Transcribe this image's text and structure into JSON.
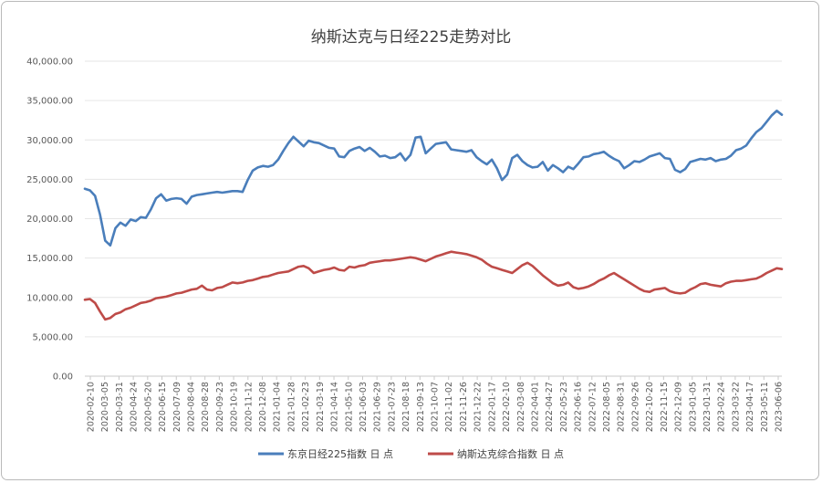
{
  "chart_data": {
    "type": "line",
    "title": "纳斯达克与日经225走势对比",
    "ylim": [
      0,
      40000
    ],
    "yticks": [
      "0.00",
      "5,000.00",
      "10,000.00",
      "15,000.00",
      "20,000.00",
      "25,000.00",
      "30,000.00",
      "35,000.00",
      "40,000.00"
    ],
    "xticks": [
      "2020-02-10",
      "2020-03-05",
      "2020-03-31",
      "2020-04-24",
      "2020-05-20",
      "2020-06-15",
      "2020-07-09",
      "2020-08-04",
      "2020-08-28",
      "2020-09-23",
      "2020-10-19",
      "2020-11-12",
      "2020-12-08",
      "2021-01-04",
      "2021-01-28",
      "2021-02-23",
      "2021-03-19",
      "2021-04-14",
      "2021-05-10",
      "2021-06-03",
      "2021-06-29",
      "2021-07-23",
      "2021-08-18",
      "2021-09-13",
      "2021-10-07",
      "2021-11-02",
      "2021-11-26",
      "2021-12-22",
      "2022-01-17",
      "2022-02-10",
      "2022-03-08",
      "2022-04-01",
      "2022-04-27",
      "2022-05-23",
      "2022-06-16",
      "2022-07-12",
      "2022-08-05",
      "2022-08-31",
      "2022-09-26",
      "2022-10-20",
      "2022-11-15",
      "2022-12-09",
      "2023-01-05",
      "2023-01-31",
      "2023-02-24",
      "2023-03-22",
      "2023-04-17",
      "2023-05-11",
      "2023-06-06"
    ],
    "legend_position": "bottom",
    "series": [
      {
        "name": "东京日经225指数 日 点",
        "color": "#4a7ebb",
        "values": [
          23800,
          23600,
          22900,
          20500,
          17200,
          16600,
          18800,
          19500,
          19100,
          19900,
          19700,
          20200,
          20100,
          21200,
          22600,
          23100,
          22300,
          22500,
          22600,
          22500,
          21900,
          22800,
          23000,
          23100,
          23200,
          23300,
          23400,
          23300,
          23400,
          23500,
          23500,
          23400,
          24900,
          26100,
          26500,
          26700,
          26600,
          26800,
          27500,
          28600,
          29600,
          30400,
          29800,
          29200,
          29900,
          29700,
          29600,
          29300,
          29000,
          28900,
          27900,
          27800,
          28600,
          28900,
          29100,
          28600,
          29000,
          28500,
          27900,
          28000,
          27700,
          27800,
          28300,
          27400,
          28100,
          30300,
          30400,
          28300,
          28900,
          29500,
          29600,
          29700,
          28800,
          28700,
          28600,
          28500,
          28700,
          27800,
          27300,
          26900,
          27500,
          26400,
          24900,
          25600,
          27700,
          28100,
          27300,
          26800,
          26500,
          26600,
          27200,
          26100,
          26800,
          26400,
          25900,
          26600,
          26300,
          27000,
          27800,
          27900,
          28200,
          28300,
          28500,
          28000,
          27600,
          27300,
          26400,
          26800,
          27300,
          27200,
          27500,
          27900,
          28100,
          28300,
          27700,
          27600,
          26200,
          25900,
          26300,
          27200,
          27400,
          27600,
          27500,
          27700,
          27300,
          27500,
          27600,
          28000,
          28700,
          28900,
          29300,
          30200,
          31000,
          31500,
          32300,
          33100,
          33700,
          33200
        ]
      },
      {
        "name": "纳斯达克综合指数 日 点",
        "color": "#be4b48",
        "values": [
          9700,
          9800,
          9300,
          8200,
          7200,
          7400,
          7900,
          8100,
          8500,
          8700,
          9000,
          9300,
          9400,
          9600,
          9900,
          10000,
          10100,
          10300,
          10500,
          10600,
          10800,
          11000,
          11100,
          11500,
          11000,
          10900,
          11200,
          11300,
          11600,
          11900,
          11800,
          11900,
          12100,
          12200,
          12400,
          12600,
          12700,
          12900,
          13100,
          13200,
          13300,
          13600,
          13900,
          14000,
          13700,
          13100,
          13300,
          13500,
          13600,
          13800,
          13500,
          13400,
          13900,
          13800,
          14000,
          14100,
          14400,
          14500,
          14600,
          14700,
          14700,
          14800,
          14900,
          15000,
          15100,
          15000,
          14800,
          14600,
          14900,
          15200,
          15400,
          15600,
          15800,
          15700,
          15600,
          15500,
          15300,
          15100,
          14800,
          14300,
          13900,
          13700,
          13500,
          13300,
          13100,
          13600,
          14100,
          14400,
          14000,
          13400,
          12800,
          12300,
          11800,
          11500,
          11600,
          11900,
          11300,
          11100,
          11200,
          11400,
          11700,
          12100,
          12400,
          12800,
          13100,
          12700,
          12300,
          11900,
          11500,
          11100,
          10800,
          10700,
          11000,
          11100,
          11200,
          10800,
          10600,
          10500,
          10600,
          11000,
          11300,
          11700,
          11800,
          11600,
          11500,
          11400,
          11800,
          12000,
          12100,
          12100,
          12200,
          12300,
          12400,
          12700,
          13100,
          13400,
          13700,
          13600
        ]
      }
    ]
  }
}
